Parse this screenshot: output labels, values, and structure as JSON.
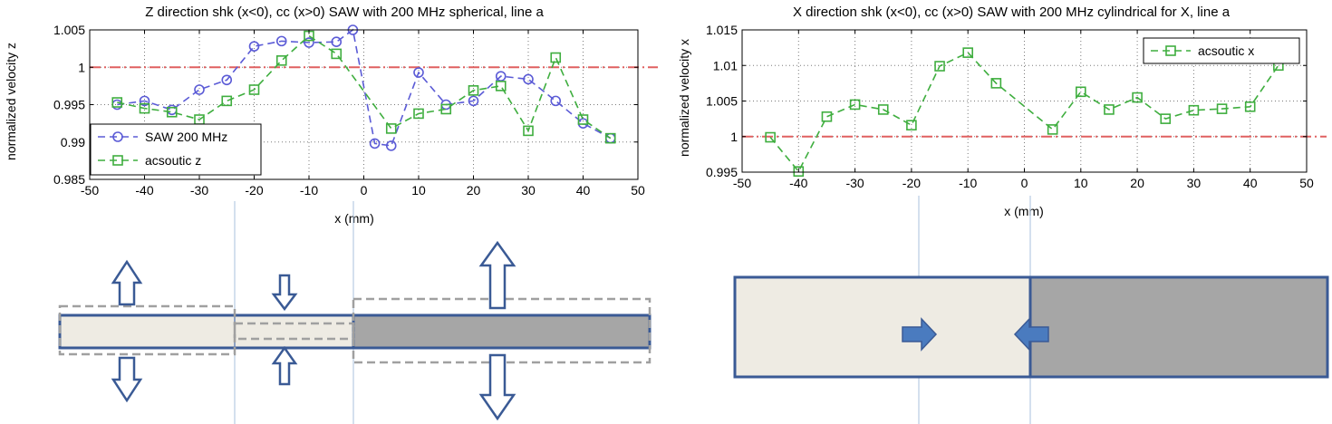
{
  "chart_data": [
    {
      "type": "line",
      "title": "Z direction shk (x<0), cc (x>0) SAW with 200 MHz spherical, line a",
      "xlabel": "x (mm)",
      "ylabel": "normalized velocity z",
      "xlim": [
        -50,
        50
      ],
      "ylim": [
        0.985,
        1.005
      ],
      "xticks": [
        "-50",
        "-40",
        "-30",
        "-20",
        "-10",
        "0",
        "10",
        "20",
        "30",
        "40",
        "50"
      ],
      "yticks": [
        "1.005",
        "1",
        "0.995",
        "0.99",
        "0.985"
      ],
      "reference_line": 1.0,
      "grid": true,
      "legend_position": "bottom-left",
      "series": [
        {
          "name": "SAW 200 MHz",
          "color": "#5b5bd6",
          "marker": "circle",
          "points": [
            [
              -45,
              0.995
            ],
            [
              -40,
              0.9955
            ],
            [
              -35,
              0.9943
            ],
            [
              -30,
              0.997
            ],
            [
              -25,
              0.9983
            ],
            [
              -20,
              1.0028
            ],
            [
              -15,
              1.0035
            ],
            [
              -10,
              1.0033
            ],
            [
              -5,
              1.0034
            ],
            [
              -2,
              1.005
            ],
            [
              2,
              0.9898
            ],
            [
              5,
              0.9895
            ],
            [
              10,
              0.9993
            ],
            [
              15,
              0.995
            ],
            [
              20,
              0.9955
            ],
            [
              25,
              0.9988
            ],
            [
              30,
              0.9984
            ],
            [
              35,
              0.9955
            ],
            [
              40,
              0.9925
            ],
            [
              45,
              0.9905
            ]
          ]
        },
        {
          "name": "acsoutic z",
          "color": "#3fae3f",
          "marker": "square",
          "points": [
            [
              -45,
              0.9953
            ],
            [
              -40,
              0.9945
            ],
            [
              -35,
              0.994
            ],
            [
              -30,
              0.993
            ],
            [
              -25,
              0.9955
            ],
            [
              -20,
              0.997
            ],
            [
              -15,
              1.0009
            ],
            [
              -10,
              1.0042
            ],
            [
              -5,
              1.0018
            ],
            [
              5,
              0.9918
            ],
            [
              10,
              0.9938
            ],
            [
              15,
              0.9944
            ],
            [
              20,
              0.9969
            ],
            [
              25,
              0.9975
            ],
            [
              30,
              0.9915
            ],
            [
              35,
              1.0013
            ],
            [
              40,
              0.993
            ],
            [
              45,
              0.9905
            ]
          ]
        }
      ]
    },
    {
      "type": "line",
      "title": "X direction shk (x<0), cc (x>0) SAW with 200 MHz cylindrical for X, line a",
      "xlabel": "x (mm)",
      "ylabel": "normalized velocity x",
      "xlim": [
        -50,
        50
      ],
      "ylim": [
        0.995,
        1.015
      ],
      "xticks": [
        "-50",
        "-40",
        "-30",
        "-20",
        "-10",
        "0",
        "10",
        "20",
        "30",
        "40",
        "50"
      ],
      "yticks": [
        "1.015",
        "1.01",
        "1.005",
        "1",
        "0.995"
      ],
      "reference_line": 1.0,
      "grid": true,
      "legend_position": "top-right",
      "series": [
        {
          "name": "acsoutic x",
          "color": "#3fae3f",
          "marker": "square",
          "points": [
            [
              -45,
              0.9999
            ],
            [
              -40,
              0.9951
            ],
            [
              -35,
              1.0028
            ],
            [
              -30,
              1.0045
            ],
            [
              -25,
              1.0038
            ],
            [
              -20,
              1.0016
            ],
            [
              -15,
              1.0099
            ],
            [
              -10,
              1.0118
            ],
            [
              -5,
              1.0075
            ],
            [
              5,
              1.001
            ],
            [
              10,
              1.0063
            ],
            [
              15,
              1.0038
            ],
            [
              20,
              1.0055
            ],
            [
              25,
              1.0025
            ],
            [
              30,
              1.0037
            ],
            [
              35,
              1.0039
            ],
            [
              40,
              1.0042
            ],
            [
              45,
              1.01
            ]
          ]
        }
      ]
    }
  ],
  "diagram_colors": {
    "outline": "#3a5a95",
    "arrow_fill": "#4a7bbf",
    "light_fill": "#eeebe3",
    "dark_fill": "#a6a6a6",
    "dashed": "#a0a0a0",
    "guide": "#a9c1dc",
    "reference": "#e06060"
  }
}
